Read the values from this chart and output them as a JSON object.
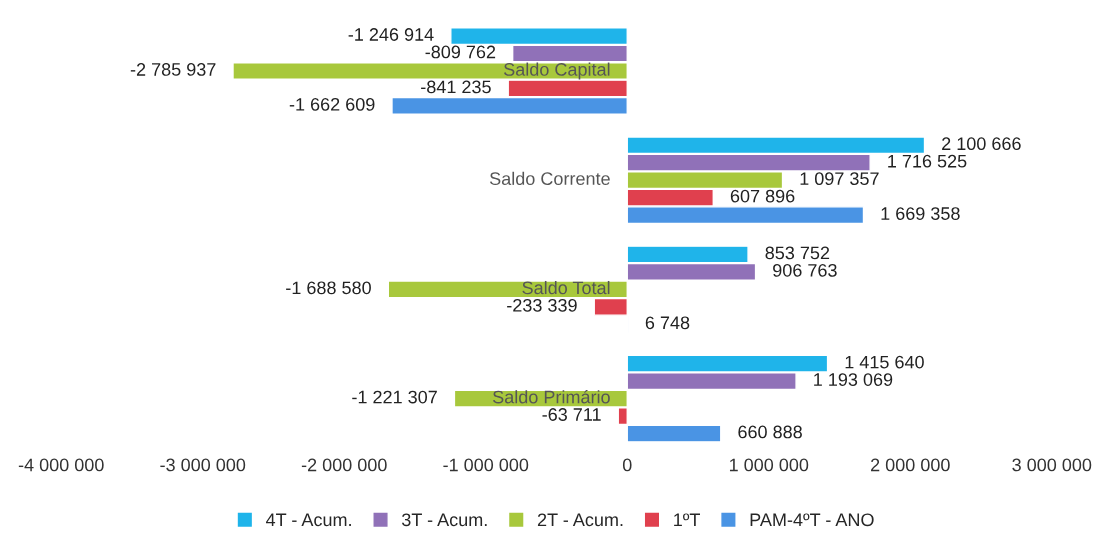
{
  "chart_data": {
    "type": "bar",
    "orientation": "horizontal",
    "categories": [
      "Saldo Capital",
      "Saldo Corrente",
      "Saldo Total",
      "Saldo Primário"
    ],
    "series": [
      {
        "name": "4T - Acum.",
        "color": "#1fb4ea",
        "values": [
          -1246914,
          2100666,
          853752,
          1415640
        ],
        "value_labels": [
          "-1 246 914",
          "2 100 666",
          "853 752",
          "1 415 640"
        ]
      },
      {
        "name": "3T - Acum.",
        "color": "#9071b8",
        "values": [
          -809762,
          1716525,
          906763,
          1193069
        ],
        "value_labels": [
          "-809 762",
          "1 716 525",
          "906 763",
          "1 193 069"
        ]
      },
      {
        "name": "2T - Acum.",
        "color": "#a8c83c",
        "values": [
          -2785937,
          1097357,
          -1688580,
          -1221307
        ],
        "value_labels": [
          "-2 785 937",
          "1 097 357",
          "-1 688 580",
          "-1 221 307"
        ]
      },
      {
        "name": "1ºT",
        "color": "#e0404e",
        "values": [
          -841235,
          607896,
          -233339,
          -63711
        ],
        "value_labels": [
          "-841 235",
          "607 896",
          "-233 339",
          "-63 711"
        ]
      },
      {
        "name": "PAM-4ºT - ANO",
        "color": "#4a94e4",
        "values": [
          -1662609,
          1669358,
          6748,
          660888
        ],
        "value_labels": [
          "-1 662 609",
          "1 669 358",
          "6 748",
          "660 888"
        ]
      }
    ],
    "xlim": [
      -4000000,
      3000000
    ],
    "xticks": [
      {
        "value": -4000000,
        "label": "-4 000 000"
      },
      {
        "value": -3000000,
        "label": "-3 000 000"
      },
      {
        "value": -2000000,
        "label": "-2 000 000"
      },
      {
        "value": -1000000,
        "label": "-1 000 000"
      },
      0,
      {
        "value": 1000000,
        "label": "1 000 000"
      },
      {
        "value": 2000000,
        "label": "2 000 000"
      },
      {
        "value": 3000000,
        "label": "3 000 000"
      }
    ],
    "grid": false,
    "legend": "bottom"
  }
}
